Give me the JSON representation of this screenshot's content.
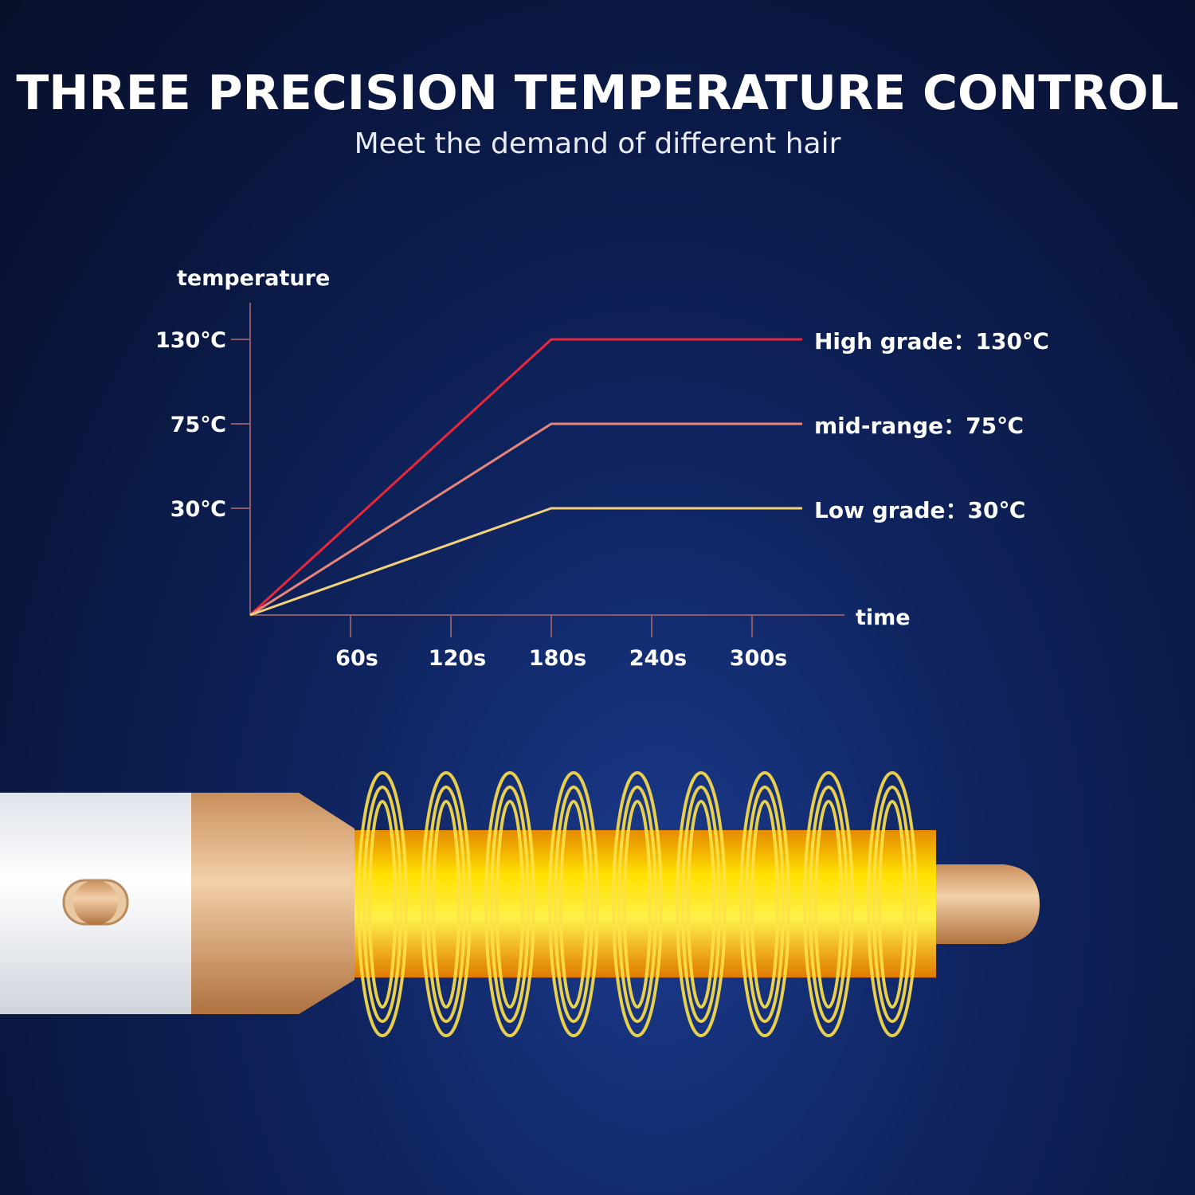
{
  "header": {
    "title": "THREE PRECISION TEMPERATURE CONTROL",
    "subtitle": "Meet the demand of different hair"
  },
  "chart_data": {
    "type": "line",
    "title": "",
    "xlabel": "time",
    "ylabel": "temperature",
    "x_ticks": [
      {
        "value": 60,
        "label": "60s"
      },
      {
        "value": 120,
        "label": "120s"
      },
      {
        "value": 180,
        "label": "180s"
      },
      {
        "value": 240,
        "label": "240s"
      },
      {
        "value": 300,
        "label": "300s"
      }
    ],
    "y_ticks": [
      {
        "value": 30,
        "label": "30℃"
      },
      {
        "value": 75,
        "label": "75℃"
      },
      {
        "value": 130,
        "label": "130℃"
      }
    ],
    "xlim": [
      0,
      330
    ],
    "grid": false,
    "legend": "right (labels at line ends)",
    "series": [
      {
        "name": "High grade：130℃",
        "color": "#e8283a",
        "points": [
          [
            0,
            0
          ],
          [
            180,
            130
          ],
          [
            330,
            130
          ]
        ]
      },
      {
        "name": "mid-range：75℃",
        "color": "#e8857a",
        "points": [
          [
            0,
            0
          ],
          [
            180,
            75
          ],
          [
            330,
            75
          ]
        ]
      },
      {
        "name": "Low grade：30℃",
        "color": "#f2d27a",
        "points": [
          [
            0,
            0
          ],
          [
            180,
            30
          ],
          [
            330,
            30
          ]
        ]
      }
    ]
  },
  "product": {
    "description_icon": "hair-curling-wand",
    "heat_color": "#f5c400",
    "accent_color": "#d9a877"
  }
}
